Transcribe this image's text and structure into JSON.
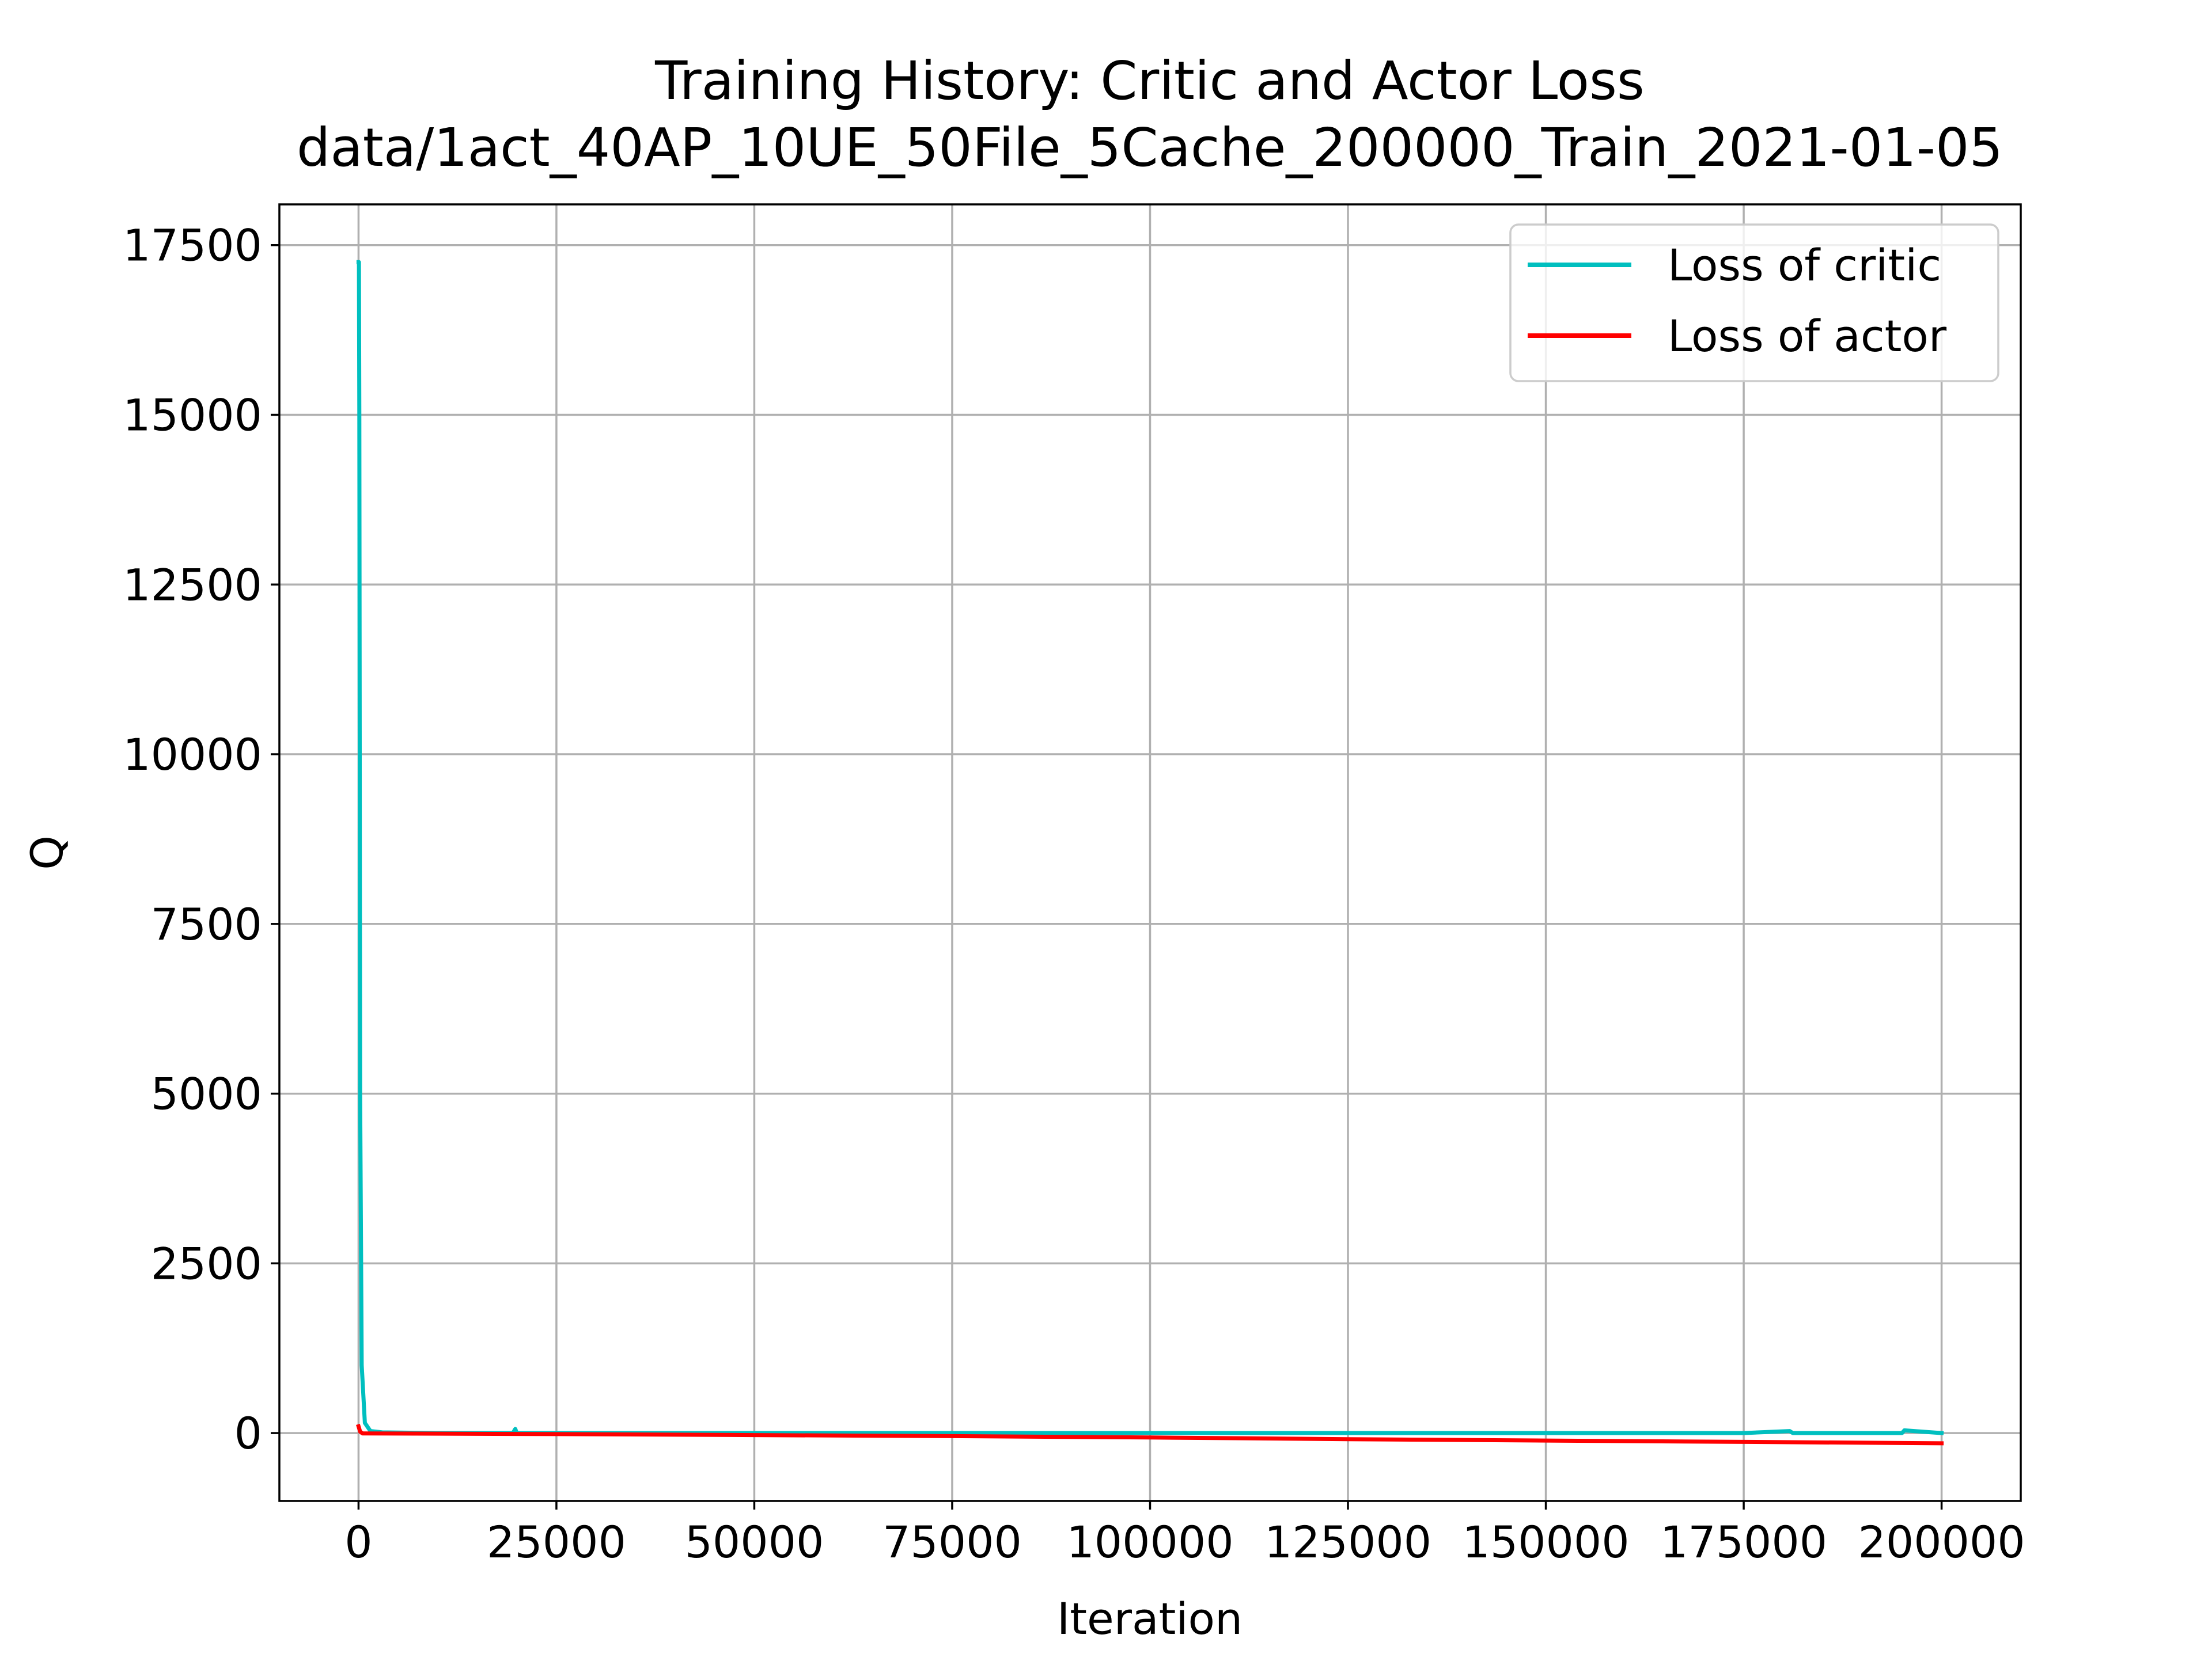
{
  "chart_data": {
    "type": "line",
    "title": "Training History: Critic and Actor Loss",
    "subtitle": "data/1act_40AP_10UE_50File_5Cache_200000_Train_2021-01-05",
    "xlabel": "Iteration",
    "ylabel": "Q",
    "xlim": [
      -10000,
      210000
    ],
    "ylim": [
      -1000,
      18100
    ],
    "xticks": [
      0,
      25000,
      50000,
      75000,
      100000,
      125000,
      150000,
      175000,
      200000
    ],
    "xtick_labels": [
      "0",
      "25000",
      "50000",
      "75000",
      "100000",
      "125000",
      "150000",
      "175000",
      "200000"
    ],
    "yticks": [
      0,
      2500,
      5000,
      7500,
      10000,
      12500,
      15000,
      17500
    ],
    "ytick_labels": [
      "0",
      "2500",
      "5000",
      "7500",
      "10000",
      "12500",
      "15000",
      "17500"
    ],
    "grid": true,
    "legend_position": "top-right",
    "series": [
      {
        "name": "Loss of critic",
        "color": "#00bfbf",
        "x": [
          0,
          50,
          100,
          200,
          400,
          800,
          1500,
          3000,
          10000,
          19500,
          19800,
          20000,
          20200,
          30000,
          50000,
          75000,
          100000,
          125000,
          150000,
          175000,
          180800,
          181200,
          195000,
          195300,
          200000
        ],
        "y": [
          17250,
          17250,
          15000,
          5000,
          1000,
          150,
          30,
          10,
          0,
          0,
          60,
          0,
          0,
          0,
          0,
          0,
          0,
          0,
          0,
          0,
          30,
          0,
          0,
          40,
          0
        ]
      },
      {
        "name": "Loss of actor",
        "color": "#ff0000",
        "x": [
          0,
          200,
          500,
          1000,
          25000,
          50000,
          75000,
          100000,
          125000,
          150000,
          175000,
          200000
        ],
        "y": [
          100,
          20,
          -5,
          -5,
          -15,
          -30,
          -45,
          -65,
          -90,
          -110,
          -130,
          -150
        ]
      }
    ]
  }
}
